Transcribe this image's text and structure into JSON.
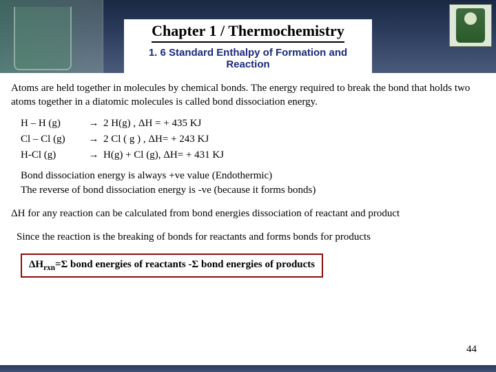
{
  "header": {
    "chapter_title": "Chapter 1 / Thermochemistry",
    "section_title": "1. 6 Standard Enthalpy of Formation and Reaction"
  },
  "intro_text": "Atoms are held together in molecules by chemical bonds. The energy required to break the bond that holds two atoms together in a diatomic molecules is called bond dissociation energy.",
  "equations": [
    {
      "lhs": "H – H (g)",
      "arrow": "→",
      "rhs": "2 H(g) ,   ΔH = + 435 KJ"
    },
    {
      "lhs": "Cl – Cl (g)",
      "arrow": "→",
      "rhs": "2 Cl ( g ) , ΔH= + 243 KJ"
    },
    {
      "lhs": "H-Cl (g)",
      "arrow": "→",
      "rhs": " H(g) + Cl (g), ΔH= + 431 KJ"
    }
  ],
  "para_endothermic_line1": "Bond dissociation energy is always +ve value (Endothermic)",
  "para_endothermic_line2": "The reverse of bond dissociation energy is -ve (because it forms bonds)",
  "para_dh": "  ΔH for any reaction can be calculated from bond energies dissociation of reactant and product",
  "para_since": "Since the reaction is the breaking of bonds for reactants  and forms bonds for products",
  "formula_prefix": "ΔH",
  "formula_sub": "rxn",
  "formula_rest": "=Σ bond energies of reactants -Σ bond energies of products",
  "page_number": "44",
  "colors": {
    "section_title": "#1a2a7a",
    "formula_border": "#8a0c0c",
    "header_gradient_top": "#1a2844",
    "header_gradient_bottom": "#4a5a7a"
  }
}
